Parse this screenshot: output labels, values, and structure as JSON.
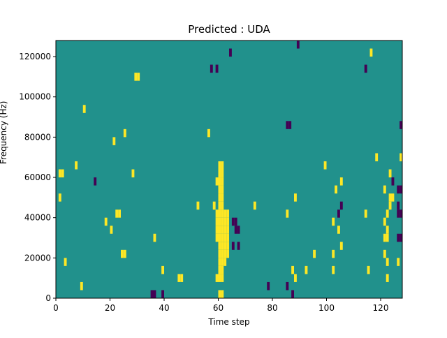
{
  "chart_data": {
    "type": "heatmap",
    "title": "Predicted : UDA",
    "xlabel": "Time step",
    "ylabel": "Frequency (Hz)",
    "xlim": [
      0,
      128
    ],
    "ylim": [
      0,
      128000
    ],
    "x_ticks": [
      0,
      20,
      40,
      60,
      80,
      100,
      120
    ],
    "y_ticks": [
      0,
      20000,
      40000,
      60000,
      80000,
      100000,
      120000
    ],
    "x_tick_labels": [
      "0",
      "20",
      "40",
      "60",
      "80",
      "100",
      "120"
    ],
    "y_tick_labels": [
      "0",
      "20000",
      "40000",
      "60000",
      "80000",
      "100000",
      "120000"
    ],
    "colormap": "viridis",
    "value_range": [
      -1,
      1
    ],
    "colors": {
      "background": "#21918c",
      "low": "#440154",
      "high": "#fde725"
    },
    "bin_size_hz": 4000,
    "cells": [
      {
        "t": 35,
        "f": 0,
        "v": -1
      },
      {
        "t": 36,
        "f": 0,
        "v": -1
      },
      {
        "t": 39,
        "f": 0,
        "v": -1
      },
      {
        "t": 60,
        "f": 0,
        "v": 1
      },
      {
        "t": 61,
        "f": 0,
        "v": 1
      },
      {
        "t": 87,
        "f": 0,
        "v": -1
      },
      {
        "t": 9,
        "f": 4000,
        "v": 1
      },
      {
        "t": 78,
        "f": 4000,
        "v": -1
      },
      {
        "t": 85,
        "f": 4000,
        "v": -1
      },
      {
        "t": 45,
        "f": 8000,
        "v": 1
      },
      {
        "t": 46,
        "f": 8000,
        "v": 1
      },
      {
        "t": 59,
        "f": 8000,
        "v": 1
      },
      {
        "t": 60,
        "f": 8000,
        "v": 1
      },
      {
        "t": 61,
        "f": 8000,
        "v": 1
      },
      {
        "t": 88,
        "f": 8000,
        "v": 1
      },
      {
        "t": 122,
        "f": 8000,
        "v": 1
      },
      {
        "t": 39,
        "f": 12000,
        "v": 1
      },
      {
        "t": 60,
        "f": 12000,
        "v": 1
      },
      {
        "t": 61,
        "f": 12000,
        "v": 1
      },
      {
        "t": 87,
        "f": 12000,
        "v": 1
      },
      {
        "t": 92,
        "f": 12000,
        "v": 1
      },
      {
        "t": 102,
        "f": 12000,
        "v": 1
      },
      {
        "t": 115,
        "f": 12000,
        "v": 1
      },
      {
        "t": 3,
        "f": 16000,
        "v": 1
      },
      {
        "t": 60,
        "f": 16000,
        "v": 1
      },
      {
        "t": 61,
        "f": 16000,
        "v": 1
      },
      {
        "t": 62,
        "f": 16000,
        "v": 1
      },
      {
        "t": 122,
        "f": 16000,
        "v": 1
      },
      {
        "t": 126,
        "f": 16000,
        "v": 1
      },
      {
        "t": 24,
        "f": 20000,
        "v": 1
      },
      {
        "t": 25,
        "f": 20000,
        "v": 1
      },
      {
        "t": 60,
        "f": 20000,
        "v": 1
      },
      {
        "t": 61,
        "f": 20000,
        "v": 1
      },
      {
        "t": 62,
        "f": 20000,
        "v": 1
      },
      {
        "t": 63,
        "f": 20000,
        "v": 1
      },
      {
        "t": 95,
        "f": 20000,
        "v": 1
      },
      {
        "t": 102,
        "f": 20000,
        "v": 1
      },
      {
        "t": 121,
        "f": 20000,
        "v": 1
      },
      {
        "t": 60,
        "f": 24000,
        "v": 1
      },
      {
        "t": 61,
        "f": 24000,
        "v": 1
      },
      {
        "t": 62,
        "f": 24000,
        "v": 1
      },
      {
        "t": 63,
        "f": 24000,
        "v": 1
      },
      {
        "t": 65,
        "f": 24000,
        "v": -1
      },
      {
        "t": 67,
        "f": 24000,
        "v": -1
      },
      {
        "t": 105,
        "f": 24000,
        "v": 1
      },
      {
        "t": 36,
        "f": 28000,
        "v": 1
      },
      {
        "t": 59,
        "f": 28000,
        "v": 1
      },
      {
        "t": 60,
        "f": 28000,
        "v": 1
      },
      {
        "t": 61,
        "f": 28000,
        "v": 1
      },
      {
        "t": 62,
        "f": 28000,
        "v": 1
      },
      {
        "t": 63,
        "f": 28000,
        "v": 1
      },
      {
        "t": 121,
        "f": 28000,
        "v": 1
      },
      {
        "t": 122,
        "f": 28000,
        "v": 1
      },
      {
        "t": 126,
        "f": 28000,
        "v": -1
      },
      {
        "t": 127,
        "f": 28000,
        "v": -1
      },
      {
        "t": 20,
        "f": 32000,
        "v": 1
      },
      {
        "t": 59,
        "f": 32000,
        "v": 1
      },
      {
        "t": 60,
        "f": 32000,
        "v": 1
      },
      {
        "t": 61,
        "f": 32000,
        "v": 1
      },
      {
        "t": 62,
        "f": 32000,
        "v": 1
      },
      {
        "t": 63,
        "f": 32000,
        "v": 1
      },
      {
        "t": 66,
        "f": 32000,
        "v": -1
      },
      {
        "t": 67,
        "f": 32000,
        "v": -1
      },
      {
        "t": 104,
        "f": 32000,
        "v": 1
      },
      {
        "t": 122,
        "f": 32000,
        "v": 1
      },
      {
        "t": 18,
        "f": 36000,
        "v": 1
      },
      {
        "t": 59,
        "f": 36000,
        "v": 1
      },
      {
        "t": 60,
        "f": 36000,
        "v": 1
      },
      {
        "t": 61,
        "f": 36000,
        "v": 1
      },
      {
        "t": 62,
        "f": 36000,
        "v": 1
      },
      {
        "t": 63,
        "f": 36000,
        "v": 1
      },
      {
        "t": 65,
        "f": 36000,
        "v": -1
      },
      {
        "t": 66,
        "f": 36000,
        "v": -1
      },
      {
        "t": 102,
        "f": 36000,
        "v": 1
      },
      {
        "t": 121,
        "f": 36000,
        "v": 1
      },
      {
        "t": 22,
        "f": 40000,
        "v": 1
      },
      {
        "t": 23,
        "f": 40000,
        "v": 1
      },
      {
        "t": 59,
        "f": 40000,
        "v": 1
      },
      {
        "t": 60,
        "f": 40000,
        "v": 1
      },
      {
        "t": 61,
        "f": 40000,
        "v": 1
      },
      {
        "t": 62,
        "f": 40000,
        "v": 1
      },
      {
        "t": 63,
        "f": 40000,
        "v": 1
      },
      {
        "t": 85,
        "f": 40000,
        "v": 1
      },
      {
        "t": 104,
        "f": 40000,
        "v": -1
      },
      {
        "t": 114,
        "f": 40000,
        "v": 1
      },
      {
        "t": 122,
        "f": 40000,
        "v": 1
      },
      {
        "t": 126,
        "f": 40000,
        "v": -1
      },
      {
        "t": 127,
        "f": 40000,
        "v": -1
      },
      {
        "t": 52,
        "f": 44000,
        "v": 1
      },
      {
        "t": 58,
        "f": 44000,
        "v": 1
      },
      {
        "t": 60,
        "f": 44000,
        "v": 1
      },
      {
        "t": 61,
        "f": 44000,
        "v": 1
      },
      {
        "t": 73,
        "f": 44000,
        "v": 1
      },
      {
        "t": 105,
        "f": 44000,
        "v": -1
      },
      {
        "t": 123,
        "f": 44000,
        "v": 1
      },
      {
        "t": 126,
        "f": 44000,
        "v": -1
      },
      {
        "t": 1,
        "f": 48000,
        "v": 1
      },
      {
        "t": 60,
        "f": 48000,
        "v": 1
      },
      {
        "t": 61,
        "f": 48000,
        "v": 1
      },
      {
        "t": 88,
        "f": 48000,
        "v": 1
      },
      {
        "t": 123,
        "f": 48000,
        "v": 1
      },
      {
        "t": 124,
        "f": 48000,
        "v": 1
      },
      {
        "t": 60,
        "f": 52000,
        "v": 1
      },
      {
        "t": 61,
        "f": 52000,
        "v": 1
      },
      {
        "t": 103,
        "f": 52000,
        "v": 1
      },
      {
        "t": 121,
        "f": 52000,
        "v": 1
      },
      {
        "t": 126,
        "f": 52000,
        "v": -1
      },
      {
        "t": 127,
        "f": 52000,
        "v": -1
      },
      {
        "t": 14,
        "f": 56000,
        "v": -1
      },
      {
        "t": 59,
        "f": 56000,
        "v": 1
      },
      {
        "t": 60,
        "f": 56000,
        "v": 1
      },
      {
        "t": 61,
        "f": 56000,
        "v": 1
      },
      {
        "t": 105,
        "f": 56000,
        "v": 1
      },
      {
        "t": 124,
        "f": 56000,
        "v": -1
      },
      {
        "t": 1,
        "f": 60000,
        "v": 1
      },
      {
        "t": 2,
        "f": 60000,
        "v": 1
      },
      {
        "t": 28,
        "f": 60000,
        "v": 1
      },
      {
        "t": 60,
        "f": 60000,
        "v": 1
      },
      {
        "t": 61,
        "f": 60000,
        "v": 1
      },
      {
        "t": 123,
        "f": 60000,
        "v": 1
      },
      {
        "t": 7,
        "f": 64000,
        "v": 1
      },
      {
        "t": 60,
        "f": 64000,
        "v": 1
      },
      {
        "t": 61,
        "f": 64000,
        "v": 1
      },
      {
        "t": 99,
        "f": 64000,
        "v": 1
      },
      {
        "t": 118,
        "f": 68000,
        "v": 1
      },
      {
        "t": 127,
        "f": 68000,
        "v": 1
      },
      {
        "t": 21,
        "f": 76000,
        "v": 1
      },
      {
        "t": 25,
        "f": 80000,
        "v": 1
      },
      {
        "t": 56,
        "f": 80000,
        "v": 1
      },
      {
        "t": 85,
        "f": 84000,
        "v": -1
      },
      {
        "t": 86,
        "f": 84000,
        "v": -1
      },
      {
        "t": 127,
        "f": 84000,
        "v": -1
      },
      {
        "t": 10,
        "f": 92000,
        "v": 1
      },
      {
        "t": 29,
        "f": 108000,
        "v": 1
      },
      {
        "t": 30,
        "f": 108000,
        "v": 1
      },
      {
        "t": 57,
        "f": 112000,
        "v": -1
      },
      {
        "t": 59,
        "f": 112000,
        "v": -1
      },
      {
        "t": 114,
        "f": 112000,
        "v": -1
      },
      {
        "t": 64,
        "f": 120000,
        "v": -1
      },
      {
        "t": 116,
        "f": 120000,
        "v": 1
      },
      {
        "t": 89,
        "f": 124000,
        "v": -1
      }
    ]
  }
}
